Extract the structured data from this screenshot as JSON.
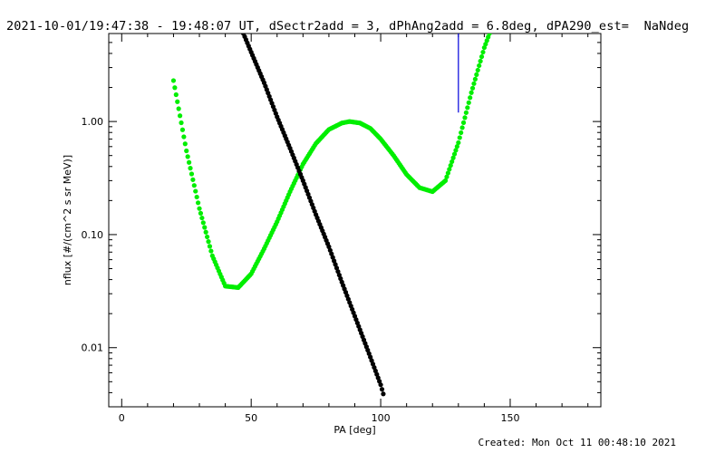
{
  "header": {
    "title": "2021-10-01/19:47:38 - 19:48:07 UT, dSectr2add = 3, dPhAng2add = 6.8deg, dPA290_est=  NaNdeg"
  },
  "footer": {
    "created": "Created: Mon Oct 11 00:48:10 2021"
  },
  "chart_data": {
    "type": "scatter",
    "title": "",
    "xlabel": "PA [deg]",
    "ylabel": "nflux [#/(cm^2 s sr MeV)]",
    "xlim": [
      -5,
      185
    ],
    "ylim": [
      0.003,
      6
    ],
    "yscale": "log",
    "xticks": [
      0,
      50,
      100,
      150
    ],
    "xtick_labels": [
      "0",
      "50",
      "100",
      "150"
    ],
    "yticks": [
      0.01,
      0.1,
      1.0
    ],
    "ytick_labels": [
      "0.01",
      "0.10",
      "1.00"
    ],
    "grid": false,
    "series": [
      {
        "color": "#00ee00",
        "style": "dots",
        "x": [
          20,
          25,
          30,
          35,
          40,
          45,
          50,
          55,
          60,
          65,
          70,
          75,
          80,
          85,
          88,
          92,
          96,
          100,
          105,
          110,
          115,
          120,
          125,
          130,
          135,
          140,
          142
        ],
        "y": [
          2.3,
          0.55,
          0.17,
          0.065,
          0.035,
          0.034,
          0.045,
          0.075,
          0.13,
          0.24,
          0.42,
          0.64,
          0.85,
          0.97,
          1.0,
          0.97,
          0.87,
          0.7,
          0.5,
          0.34,
          0.26,
          0.24,
          0.3,
          0.65,
          1.8,
          4.5,
          6
        ]
      },
      {
        "color": "#000000",
        "style": "dots",
        "x": [
          47,
          50,
          55,
          60,
          65,
          70,
          75,
          80,
          85,
          90,
          95,
          100,
          101
        ],
        "y": [
          6,
          4.1,
          2.2,
          1.1,
          0.58,
          0.3,
          0.15,
          0.078,
          0.038,
          0.019,
          0.0095,
          0.0047,
          0.0039
        ]
      },
      {
        "color": "#0000dd",
        "style": "line",
        "x": [
          130,
          130
        ],
        "y": [
          6,
          1.2
        ]
      }
    ]
  }
}
